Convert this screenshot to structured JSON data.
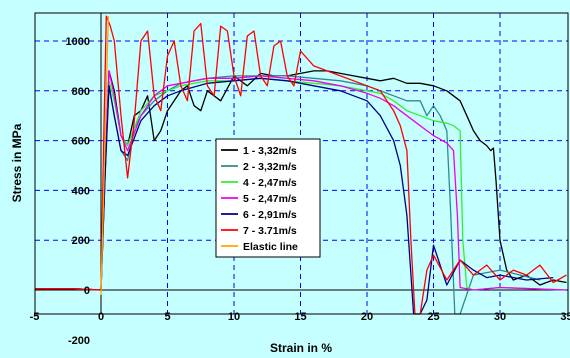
{
  "chart_data": {
    "type": "line",
    "title": "",
    "xlabel": "Strain in %",
    "ylabel": "Stress in MPa",
    "xlim": [
      -5,
      35
    ],
    "ylim": [
      -200,
      1100
    ],
    "x_ticks": [
      -5,
      0,
      5,
      10,
      15,
      20,
      25,
      30,
      35
    ],
    "y_ticks": [
      -200,
      0,
      200,
      400,
      600,
      800,
      1000
    ],
    "x_tick_labels": [
      "-5",
      "0",
      "5",
      "10",
      "15",
      "20",
      "25",
      "30",
      "35"
    ],
    "y_tick_labels": [
      "-200",
      "0",
      "200",
      "400",
      "600",
      "800",
      "1000"
    ],
    "grid": true,
    "legend_position": "center",
    "series": [
      {
        "name": "1 - 3,32m/s",
        "color": "#000000",
        "x": [
          -5,
          -2,
          0,
          0.3,
          0.6,
          1.0,
          1.5,
          2.0,
          2.5,
          3.0,
          3.5,
          4.0,
          4.5,
          5.0,
          5.5,
          6.0,
          6.5,
          7.0,
          7.5,
          8.0,
          9.0,
          10.0,
          11.0,
          12.0,
          13.0,
          14.0,
          15.0,
          16.0,
          17.0,
          18.0,
          19.0,
          20.0,
          21.0,
          22.0,
          23.0,
          24.0,
          25.0,
          26.0,
          27.0,
          27.5,
          28.0,
          28.5,
          29.0,
          29.3,
          29.5,
          29.7,
          30.0,
          30.5,
          31.0,
          32.0,
          33.0,
          34.0,
          35.0
        ],
        "y": [
          5,
          5,
          0,
          450,
          880,
          800,
          620,
          580,
          700,
          720,
          780,
          600,
          640,
          720,
          760,
          800,
          820,
          740,
          720,
          800,
          760,
          860,
          820,
          870,
          860,
          860,
          870,
          880,
          880,
          870,
          860,
          850,
          840,
          850,
          830,
          830,
          820,
          800,
          760,
          700,
          640,
          600,
          580,
          560,
          570,
          440,
          200,
          80,
          40,
          60,
          20,
          40,
          30
        ]
      },
      {
        "name": "2 - 3,32m/s",
        "color": "#2e8b8b",
        "x": [
          -5,
          -2,
          0,
          0.3,
          0.6,
          1.0,
          1.5,
          2.0,
          2.5,
          3.0,
          4.0,
          5.0,
          6.0,
          7.0,
          8.0,
          10.0,
          12.0,
          14.0,
          16.0,
          18.0,
          20.0,
          21.0,
          22.0,
          23.0,
          24.0,
          24.5,
          25.0,
          25.5,
          26.0,
          26.3,
          26.6,
          27.0,
          28.0,
          30.0,
          33.0
        ],
        "y": [
          5,
          5,
          0,
          480,
          820,
          700,
          560,
          520,
          650,
          700,
          760,
          800,
          830,
          840,
          850,
          860,
          860,
          860,
          850,
          840,
          820,
          800,
          780,
          760,
          760,
          700,
          740,
          700,
          640,
          300,
          -160,
          -100,
          60,
          80,
          40
        ]
      },
      {
        "name": "4 - 2,47m/s",
        "color": "#33ee33",
        "x": [
          -5,
          -2,
          0,
          0.3,
          0.6,
          1.0,
          1.5,
          2.0,
          3.0,
          4.0,
          5.0,
          6.0,
          8.0,
          10.0,
          12.0,
          14.0,
          16.0,
          18.0,
          20.0,
          21.0,
          22.0,
          23.0,
          24.0,
          25.0,
          26.0,
          26.5,
          27.0,
          27.2,
          27.5,
          28.0,
          30.0,
          35.0
        ],
        "y": [
          5,
          5,
          0,
          480,
          840,
          760,
          620,
          580,
          720,
          780,
          800,
          820,
          840,
          840,
          850,
          840,
          830,
          820,
          800,
          790,
          760,
          720,
          700,
          680,
          670,
          660,
          640,
          200,
          10,
          0,
          10,
          0
        ]
      },
      {
        "name": "5 - 2,47m/s",
        "color": "#ee00ee",
        "x": [
          -5,
          -2,
          0,
          0.3,
          0.6,
          1.0,
          1.5,
          2.0,
          3.0,
          4.0,
          5.0,
          6.0,
          8.0,
          10.0,
          12.0,
          14.0,
          16.0,
          18.0,
          20.0,
          21.0,
          22.0,
          23.0,
          24.0,
          25.0,
          26.0,
          26.5,
          26.8,
          27.0,
          28.0,
          30.0,
          35.0
        ],
        "y": [
          5,
          5,
          0,
          500,
          880,
          780,
          620,
          560,
          700,
          780,
          820,
          830,
          850,
          850,
          860,
          850,
          840,
          820,
          790,
          770,
          740,
          700,
          660,
          620,
          590,
          560,
          300,
          10,
          0,
          10,
          0
        ]
      },
      {
        "name": "6 - 2,91m/s",
        "color": "#000080",
        "x": [
          -5,
          -2,
          0,
          0.3,
          0.6,
          1.0,
          1.5,
          2.0,
          3.0,
          4.0,
          5.0,
          6.0,
          8.0,
          10.0,
          12.0,
          14.0,
          16.0,
          18.0,
          19.0,
          20.0,
          21.0,
          22.0,
          22.5,
          23.0,
          23.5,
          24.0,
          24.5,
          25.0,
          26.0,
          27.0,
          28.0,
          29.0,
          30.0,
          32.0,
          34.0
        ],
        "y": [
          5,
          5,
          0,
          450,
          820,
          700,
          560,
          540,
          680,
          740,
          780,
          800,
          830,
          840,
          850,
          840,
          820,
          800,
          780,
          760,
          700,
          600,
          500,
          300,
          -100,
          -200,
          -40,
          180,
          20,
          120,
          80,
          50,
          60,
          40,
          50
        ]
      },
      {
        "name": "7 - 3.71m/s",
        "color": "#ff0000",
        "x": [
          -5,
          -2,
          0,
          0.2,
          0.4,
          0.7,
          1.0,
          1.5,
          2.0,
          2.5,
          3.0,
          3.5,
          4.0,
          4.5,
          5.0,
          5.5,
          6.0,
          6.5,
          7.0,
          7.5,
          8.0,
          8.5,
          9.0,
          9.5,
          10.0,
          10.5,
          11.0,
          11.5,
          12.0,
          12.5,
          13.0,
          13.5,
          14.0,
          14.5,
          15.0,
          16.0,
          17.0,
          18.0,
          19.0,
          20.0,
          21.0,
          21.5,
          22.0,
          22.5,
          23.0,
          23.3,
          23.6,
          24.0,
          24.5,
          25.0,
          26.0,
          27.0,
          28.0,
          29.0,
          30.0,
          31.0,
          32.0,
          33.0,
          34.0,
          35.0
        ],
        "y": [
          5,
          5,
          0,
          600,
          1100,
          1060,
          1000,
          700,
          450,
          680,
          1000,
          1040,
          780,
          720,
          940,
          1000,
          820,
          760,
          1040,
          1070,
          820,
          780,
          1060,
          1040,
          860,
          780,
          1020,
          1040,
          860,
          820,
          980,
          1000,
          860,
          820,
          960,
          900,
          880,
          860,
          840,
          820,
          800,
          760,
          720,
          660,
          560,
          200,
          -200,
          -120,
          80,
          140,
          40,
          120,
          60,
          100,
          40,
          80,
          60,
          100,
          30,
          60
        ]
      },
      {
        "name": "Elastic line",
        "color": "#ffa500",
        "x": [
          0,
          0.55
        ],
        "y": [
          -20,
          1100
        ]
      }
    ]
  }
}
